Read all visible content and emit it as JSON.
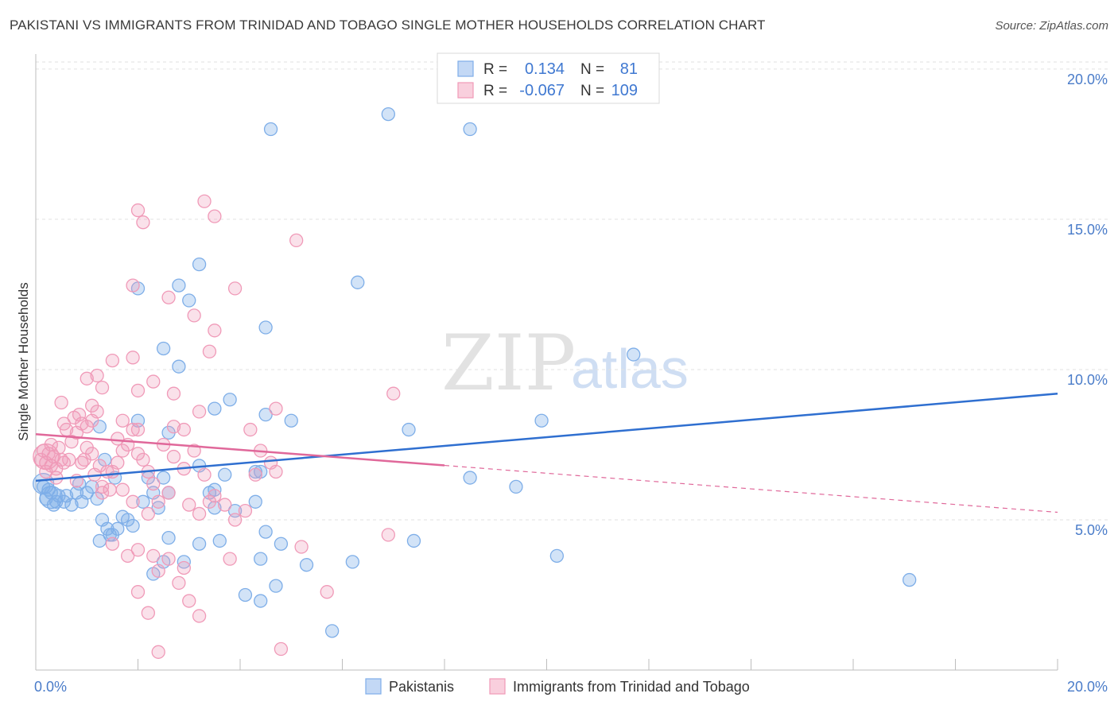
{
  "header": {
    "title": "PAKISTANI VS IMMIGRANTS FROM TRINIDAD AND TOBAGO SINGLE MOTHER HOUSEHOLDS CORRELATION CHART",
    "source": "Source: ZipAtlas.com"
  },
  "watermark": {
    "zip": "ZIP",
    "atlas": "atlas"
  },
  "legend": {
    "rows": [
      {
        "r_label": "R =",
        "r_value": "0.134",
        "n_label": "N =",
        "n_value": "81",
        "color": "#7eaee8"
      },
      {
        "r_label": "R =",
        "r_value": "-0.067",
        "n_label": "N =",
        "n_value": "109",
        "color": "#f09ab8"
      }
    ]
  },
  "bottom_legend": {
    "items": [
      "Pakistanis",
      "Immigrants from Trinidad and Tobago"
    ]
  },
  "chart_data": {
    "type": "scatter",
    "ylabel": "Single Mother Households",
    "xlim": [
      0,
      20
    ],
    "ylim": [
      0,
      20.5
    ],
    "x_ticks": [
      "0.0%",
      "20.0%"
    ],
    "y_ticks": [
      {
        "v": 5,
        "label": "5.0%"
      },
      {
        "v": 10,
        "label": "10.0%"
      },
      {
        "v": 15,
        "label": "15.0%"
      },
      {
        "v": 20,
        "label": "20.0%"
      }
    ],
    "series": [
      {
        "name": "Pakistanis",
        "color": "#7eaee8",
        "line_color": "#2f6fd0",
        "trend": {
          "x0": 0,
          "y0": 6.3,
          "x1": 20,
          "y1": 9.2,
          "dash_from": null
        },
        "points": [
          [
            0.2,
            5.7
          ],
          [
            0.3,
            5.9
          ],
          [
            0.35,
            5.5
          ],
          [
            0.4,
            5.6
          ],
          [
            0.45,
            5.8
          ],
          [
            0.55,
            5.6
          ],
          [
            0.6,
            5.8
          ],
          [
            0.7,
            5.5
          ],
          [
            0.8,
            5.9
          ],
          [
            0.9,
            5.6
          ],
          [
            0.25,
            6.0
          ],
          [
            0.15,
            6.1
          ],
          [
            0.85,
            6.2
          ],
          [
            1.0,
            5.9
          ],
          [
            1.1,
            6.1
          ],
          [
            1.2,
            5.7
          ],
          [
            1.3,
            5.0
          ],
          [
            1.4,
            4.7
          ],
          [
            1.5,
            4.5
          ],
          [
            1.6,
            4.7
          ],
          [
            1.7,
            5.1
          ],
          [
            1.8,
            5.0
          ],
          [
            1.9,
            4.8
          ],
          [
            1.25,
            4.3
          ],
          [
            1.45,
            4.5
          ],
          [
            2.1,
            5.6
          ],
          [
            2.3,
            5.9
          ],
          [
            2.4,
            5.4
          ],
          [
            2.6,
            5.9
          ],
          [
            2.2,
            6.4
          ],
          [
            2.5,
            6.4
          ],
          [
            1.55,
            6.4
          ],
          [
            1.35,
            7.0
          ],
          [
            1.25,
            8.1
          ],
          [
            2.0,
            8.3
          ],
          [
            2.6,
            7.9
          ],
          [
            3.2,
            6.8
          ],
          [
            3.5,
            6.0
          ],
          [
            3.4,
            5.9
          ],
          [
            3.5,
            5.4
          ],
          [
            3.7,
            6.5
          ],
          [
            3.9,
            5.3
          ],
          [
            4.3,
            5.6
          ],
          [
            4.3,
            6.6
          ],
          [
            4.4,
            6.6
          ],
          [
            4.5,
            4.6
          ],
          [
            4.4,
            3.7
          ],
          [
            2.6,
            4.4
          ],
          [
            2.5,
            3.6
          ],
          [
            2.3,
            3.2
          ],
          [
            2.9,
            3.6
          ],
          [
            3.2,
            4.2
          ],
          [
            3.6,
            4.3
          ],
          [
            4.1,
            2.5
          ],
          [
            4.4,
            2.3
          ],
          [
            4.7,
            2.8
          ],
          [
            4.8,
            4.2
          ],
          [
            5.3,
            3.5
          ],
          [
            5.8,
            1.3
          ],
          [
            6.2,
            3.6
          ],
          [
            7.3,
            8.0
          ],
          [
            7.4,
            4.3
          ],
          [
            8.5,
            6.4
          ],
          [
            9.4,
            6.1
          ],
          [
            9.9,
            8.3
          ],
          [
            10.2,
            3.8
          ],
          [
            11.7,
            10.5
          ],
          [
            17.1,
            3.0
          ],
          [
            4.5,
            8.5
          ],
          [
            5.0,
            8.3
          ],
          [
            3.5,
            8.7
          ],
          [
            3.8,
            9.0
          ],
          [
            2.8,
            10.1
          ],
          [
            2.5,
            10.7
          ],
          [
            4.5,
            11.4
          ],
          [
            3.0,
            12.3
          ],
          [
            2.8,
            12.8
          ],
          [
            3.2,
            13.5
          ],
          [
            6.3,
            12.9
          ],
          [
            2.0,
            12.7
          ],
          [
            4.6,
            18.0
          ],
          [
            6.9,
            18.5
          ],
          [
            8.5,
            18.0
          ]
        ]
      },
      {
        "name": "Immigrants from Trinidad and Tobago",
        "color": "#f09ab8",
        "line_color": "#e0689a",
        "trend": {
          "x0": 0,
          "y0": 7.85,
          "x1": 20,
          "y1": 5.25,
          "dash_from": 8.0
        },
        "points": [
          [
            0.1,
            7.0
          ],
          [
            0.15,
            7.3
          ],
          [
            0.2,
            6.9
          ],
          [
            0.25,
            7.2
          ],
          [
            0.3,
            6.8
          ],
          [
            0.35,
            7.1
          ],
          [
            0.4,
            6.7
          ],
          [
            0.45,
            7.4
          ],
          [
            0.5,
            7.0
          ],
          [
            0.55,
            6.9
          ],
          [
            0.6,
            8.0
          ],
          [
            0.7,
            7.6
          ],
          [
            0.8,
            7.9
          ],
          [
            0.9,
            8.2
          ],
          [
            0.75,
            8.4
          ],
          [
            0.85,
            8.5
          ],
          [
            1.0,
            8.1
          ],
          [
            1.1,
            8.3
          ],
          [
            1.2,
            8.6
          ],
          [
            0.9,
            6.9
          ],
          [
            1.0,
            7.4
          ],
          [
            1.15,
            6.5
          ],
          [
            1.3,
            6.1
          ],
          [
            1.45,
            6.0
          ],
          [
            1.5,
            6.6
          ],
          [
            1.6,
            6.9
          ],
          [
            1.7,
            7.3
          ],
          [
            1.8,
            7.5
          ],
          [
            1.9,
            8.0
          ],
          [
            2.0,
            7.2
          ],
          [
            2.1,
            7.0
          ],
          [
            2.2,
            6.6
          ],
          [
            2.3,
            6.2
          ],
          [
            2.5,
            7.5
          ],
          [
            2.7,
            7.1
          ],
          [
            2.9,
            6.7
          ],
          [
            3.1,
            7.3
          ],
          [
            3.3,
            6.5
          ],
          [
            3.5,
            5.8
          ],
          [
            3.7,
            5.5
          ],
          [
            3.9,
            5.0
          ],
          [
            4.1,
            5.3
          ],
          [
            4.3,
            6.5
          ],
          [
            4.4,
            7.3
          ],
          [
            4.6,
            6.9
          ],
          [
            4.7,
            6.6
          ],
          [
            1.0,
            9.7
          ],
          [
            1.2,
            9.8
          ],
          [
            1.3,
            9.4
          ],
          [
            1.5,
            10.3
          ],
          [
            1.9,
            10.4
          ],
          [
            2.0,
            9.3
          ],
          [
            2.3,
            9.6
          ],
          [
            2.7,
            9.2
          ],
          [
            3.2,
            8.6
          ],
          [
            3.4,
            10.6
          ],
          [
            3.5,
            11.3
          ],
          [
            3.9,
            12.7
          ],
          [
            3.1,
            11.8
          ],
          [
            2.6,
            12.4
          ],
          [
            1.9,
            12.8
          ],
          [
            2.0,
            15.3
          ],
          [
            2.1,
            14.9
          ],
          [
            3.3,
            15.6
          ],
          [
            3.5,
            15.1
          ],
          [
            5.1,
            14.3
          ],
          [
            0.5,
            8.9
          ],
          [
            0.55,
            8.2
          ],
          [
            1.1,
            8.8
          ],
          [
            1.7,
            8.3
          ],
          [
            2.0,
            8.0
          ],
          [
            2.7,
            8.1
          ],
          [
            2.9,
            8.0
          ],
          [
            4.2,
            8.0
          ],
          [
            4.7,
            8.7
          ],
          [
            1.4,
            6.6
          ],
          [
            1.7,
            6.0
          ],
          [
            2.2,
            5.2
          ],
          [
            2.4,
            5.6
          ],
          [
            2.6,
            5.9
          ],
          [
            3.0,
            5.5
          ],
          [
            3.2,
            5.2
          ],
          [
            3.4,
            5.6
          ],
          [
            1.5,
            4.2
          ],
          [
            1.8,
            3.8
          ],
          [
            2.0,
            4.0
          ],
          [
            2.3,
            3.8
          ],
          [
            2.4,
            3.3
          ],
          [
            2.6,
            3.7
          ],
          [
            2.8,
            2.9
          ],
          [
            3.0,
            2.3
          ],
          [
            3.2,
            1.8
          ],
          [
            3.8,
            3.7
          ],
          [
            5.2,
            4.1
          ],
          [
            5.7,
            2.6
          ],
          [
            4.8,
            0.7
          ],
          [
            2.0,
            2.6
          ],
          [
            2.2,
            1.9
          ],
          [
            2.4,
            0.6
          ],
          [
            7.0,
            9.2
          ],
          [
            6.9,
            4.5
          ],
          [
            1.3,
            5.9
          ],
          [
            0.8,
            6.3
          ],
          [
            1.6,
            7.7
          ],
          [
            0.65,
            7.0
          ],
          [
            0.95,
            7.0
          ],
          [
            1.25,
            6.8
          ],
          [
            1.1,
            7.2
          ],
          [
            0.4,
            6.4
          ],
          [
            0.3,
            7.5
          ],
          [
            0.2,
            6.6
          ],
          [
            1.9,
            5.6
          ],
          [
            2.9,
            3.4
          ]
        ]
      }
    ]
  }
}
